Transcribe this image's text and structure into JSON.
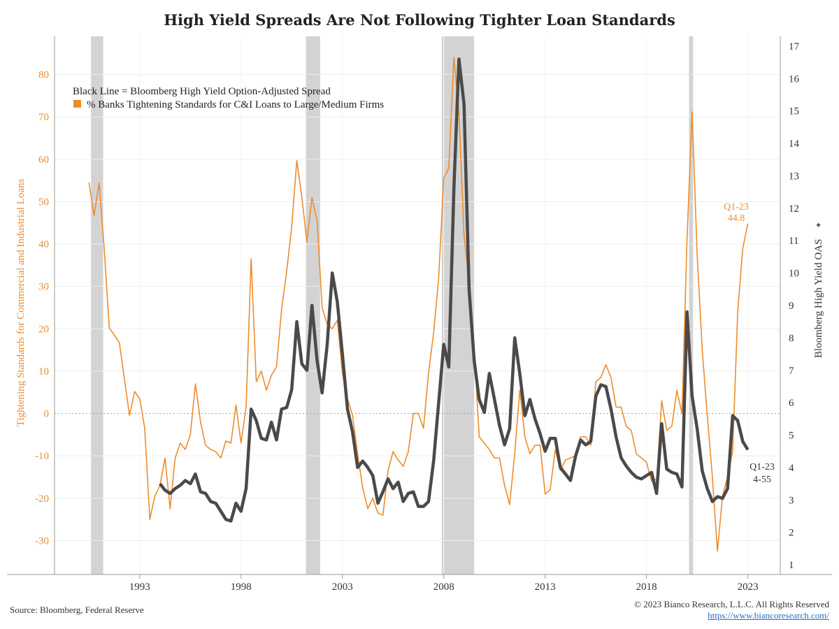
{
  "title": "High Yield Spreads Are Not Following Tighter Loan Standards",
  "source": "Source: Bloomberg, Federal Reserve",
  "copyright": "© 2023 Bianco Research, L.L.C. All Rights Reserved",
  "website": "https://www.biancoresearch.com/",
  "colors": {
    "orange": "#ee8c2c",
    "black_line": "#4a4a4a",
    "recession": "#d3d3d3",
    "axis": "#666666",
    "grid": "#eeeeee"
  },
  "chart_data": {
    "type": "line",
    "title": "High Yield Spreads Are Not Following Tighter Loan Standards",
    "legend": {
      "line1": "Black Line = Bloomberg High Yield Option-Adjusted Spread",
      "line2": "% Banks Tightening Standards for C&I Loans to Large/Medium Firms",
      "placement": "top-left"
    },
    "left_axis": {
      "label": "Tightening Standards for Commercial and Industrial Loans",
      "range": [
        -38,
        89
      ],
      "ticks": [
        -30,
        -20,
        -10,
        0,
        10,
        20,
        30,
        40,
        50,
        60,
        70,
        80
      ]
    },
    "right_axis": {
      "label": "Bloomberg High Yield OAS",
      "range": [
        0.7,
        17.3
      ],
      "ticks": [
        1,
        2,
        3,
        4,
        5,
        6,
        7,
        8,
        9,
        10,
        11,
        12,
        13,
        14,
        15,
        16,
        17
      ]
    },
    "x_axis": {
      "range": [
        1988.8,
        2024.6
      ],
      "ticks": [
        1993,
        1998,
        2003,
        2008,
        2013,
        2018,
        2023
      ]
    },
    "zero_line": true,
    "recessions": [
      [
        1990.6,
        1991.2
      ],
      [
        2001.2,
        2001.9
      ],
      [
        2007.9,
        2009.5
      ],
      [
        2020.1,
        2020.3
      ]
    ],
    "annotations": [
      {
        "line1": "Q1-23",
        "line2": "44.8",
        "series": "orange"
      },
      {
        "line1": "Q1-23",
        "line2": "4-55",
        "series": "black"
      }
    ],
    "series": [
      {
        "name": "% Banks Tightening Standards for C&I Loans to Large/Medium Firms",
        "axis": "left",
        "x": [
          1990.5,
          1990.75,
          1991.0,
          1991.25,
          1991.5,
          1991.75,
          1992.0,
          1992.25,
          1992.5,
          1992.75,
          1993.0,
          1993.25,
          1993.5,
          1993.75,
          1994.0,
          1994.25,
          1994.5,
          1994.75,
          1995.0,
          1995.25,
          1995.5,
          1995.75,
          1996.0,
          1996.25,
          1996.5,
          1996.75,
          1997.0,
          1997.25,
          1997.5,
          1997.75,
          1998.0,
          1998.25,
          1998.5,
          1998.75,
          1999.0,
          1999.25,
          1999.5,
          1999.75,
          2000.0,
          2000.25,
          2000.5,
          2000.75,
          2001.0,
          2001.25,
          2001.5,
          2001.75,
          2002.0,
          2002.25,
          2002.5,
          2002.75,
          2003.0,
          2003.25,
          2003.5,
          2003.75,
          2004.0,
          2004.25,
          2004.5,
          2004.75,
          2005.0,
          2005.25,
          2005.5,
          2005.75,
          2006.0,
          2006.25,
          2006.5,
          2006.75,
          2007.0,
          2007.25,
          2007.5,
          2007.75,
          2008.0,
          2008.25,
          2008.5,
          2008.75,
          2009.0,
          2009.25,
          2009.5,
          2009.75,
          2010.0,
          2010.25,
          2010.5,
          2010.75,
          2011.0,
          2011.25,
          2011.5,
          2011.75,
          2012.0,
          2012.25,
          2012.5,
          2012.75,
          2013.0,
          2013.25,
          2013.5,
          2013.75,
          2014.0,
          2014.25,
          2014.5,
          2014.75,
          2015.0,
          2015.25,
          2015.5,
          2015.75,
          2016.0,
          2016.25,
          2016.5,
          2016.75,
          2017.0,
          2017.25,
          2017.5,
          2017.75,
          2018.0,
          2018.25,
          2018.5,
          2018.75,
          2019.0,
          2019.25,
          2019.5,
          2019.75,
          2020.0,
          2020.25,
          2020.5,
          2020.75,
          2021.0,
          2021.25,
          2021.5,
          2021.75,
          2022.0,
          2022.25,
          2022.5,
          2022.75,
          2023.0
        ],
        "y": [
          54.5,
          46.7,
          54.4,
          39.0,
          20.2,
          18.5,
          16.7,
          8.0,
          -0.5,
          5.2,
          3.5,
          -3.5,
          -25.0,
          -19.5,
          -17.0,
          -10.5,
          -22.5,
          -10.5,
          -7.0,
          -8.5,
          -5.0,
          7.0,
          -2.0,
          -7.5,
          -8.5,
          -9.0,
          -10.5,
          -6.5,
          -7.0,
          2.0,
          -7.0,
          1.5,
          36.5,
          7.5,
          10.0,
          5.5,
          9.0,
          11.0,
          24.5,
          33.5,
          44.0,
          59.7,
          51.0,
          40.5,
          51.0,
          45.5,
          25.0,
          21.0,
          20.0,
          22.0,
          9.5,
          3.5,
          -0.5,
          -9.5,
          -17.5,
          -22.5,
          -20.0,
          -23.5,
          -24.0,
          -13.5,
          -9.0,
          -11.0,
          -12.5,
          -9.0,
          0.0,
          0.0,
          -3.5,
          9.5,
          19.0,
          32.0,
          55.5,
          58.0,
          84.0,
          71.0,
          42.0,
          31.0,
          15.0,
          -5.5,
          -7.0,
          -8.5,
          -10.5,
          -10.5,
          -17.0,
          -21.5,
          -9.5,
          5.5,
          -5.5,
          -9.5,
          -7.5,
          -7.5,
          -19.0,
          -18.0,
          -8.5,
          -13.5,
          -11.0,
          -10.5,
          -10.0,
          -5.5,
          -5.5,
          -7.5,
          7.5,
          8.5,
          11.5,
          8.5,
          1.5,
          1.5,
          -3.0,
          -4.0,
          -9.5,
          -10.5,
          -11.5,
          -16.0,
          -15.5,
          3.0,
          -4.0,
          -3.0,
          5.5,
          0.0,
          41.0,
          71.2,
          37.5,
          15.0,
          -0.5,
          -15.0,
          -32.5,
          -19.5,
          -15.0,
          -9.0,
          24.0,
          39.0,
          44.8
        ]
      },
      {
        "name": "Bloomberg High Yield Option-Adjusted Spread",
        "axis": "right",
        "x": [
          1994.0,
          1994.25,
          1994.5,
          1994.75,
          1995.0,
          1995.25,
          1995.5,
          1995.75,
          1996.0,
          1996.25,
          1996.5,
          1996.75,
          1997.0,
          1997.25,
          1997.5,
          1997.75,
          1998.0,
          1998.25,
          1998.5,
          1998.75,
          1999.0,
          1999.25,
          1999.5,
          1999.75,
          2000.0,
          2000.25,
          2000.5,
          2000.75,
          2001.0,
          2001.25,
          2001.5,
          2001.75,
          2002.0,
          2002.25,
          2002.5,
          2002.75,
          2003.0,
          2003.25,
          2003.5,
          2003.75,
          2004.0,
          2004.25,
          2004.5,
          2004.75,
          2005.0,
          2005.25,
          2005.5,
          2005.75,
          2006.0,
          2006.25,
          2006.5,
          2006.75,
          2007.0,
          2007.25,
          2007.5,
          2007.75,
          2008.0,
          2008.25,
          2008.5,
          2008.75,
          2009.0,
          2009.25,
          2009.5,
          2009.75,
          2010.0,
          2010.25,
          2010.5,
          2010.75,
          2011.0,
          2011.25,
          2011.5,
          2011.75,
          2012.0,
          2012.25,
          2012.5,
          2012.75,
          2013.0,
          2013.25,
          2013.5,
          2013.75,
          2014.0,
          2014.25,
          2014.5,
          2014.75,
          2015.0,
          2015.25,
          2015.5,
          2015.75,
          2016.0,
          2016.25,
          2016.5,
          2016.75,
          2017.0,
          2017.25,
          2017.5,
          2017.75,
          2018.0,
          2018.25,
          2018.5,
          2018.75,
          2019.0,
          2019.25,
          2019.5,
          2019.75,
          2020.0,
          2020.25,
          2020.5,
          2020.75,
          2021.0,
          2021.25,
          2021.5,
          2021.75,
          2022.0,
          2022.25,
          2022.5,
          2022.75,
          2023.0
        ],
        "y": [
          3.5,
          3.3,
          3.2,
          3.35,
          3.45,
          3.6,
          3.5,
          3.8,
          3.25,
          3.2,
          2.95,
          2.9,
          2.65,
          2.4,
          2.35,
          2.9,
          2.65,
          3.35,
          5.8,
          5.45,
          4.9,
          4.85,
          5.4,
          4.85,
          5.8,
          5.85,
          6.4,
          8.5,
          7.2,
          7.0,
          9.0,
          7.3,
          6.3,
          7.8,
          10.0,
          9.1,
          7.5,
          5.8,
          5.1,
          4.0,
          4.2,
          4.0,
          3.75,
          2.9,
          3.25,
          3.65,
          3.35,
          3.55,
          2.95,
          3.2,
          3.25,
          2.8,
          2.8,
          2.95,
          4.2,
          6.0,
          7.8,
          7.1,
          12.6,
          16.6,
          15.2,
          9.5,
          7.3,
          6.1,
          5.7,
          6.9,
          6.1,
          5.3,
          4.7,
          5.2,
          8.0,
          6.9,
          5.6,
          6.1,
          5.5,
          5.05,
          4.5,
          4.9,
          4.9,
          4.0,
          3.8,
          3.6,
          4.35,
          4.85,
          4.7,
          4.8,
          6.2,
          6.55,
          6.5,
          5.8,
          4.95,
          4.3,
          4.05,
          3.85,
          3.7,
          3.65,
          3.75,
          3.85,
          3.2,
          5.35,
          3.95,
          3.85,
          3.8,
          3.4,
          8.8,
          6.2,
          5.2,
          3.9,
          3.35,
          2.95,
          3.1,
          3.05,
          3.35,
          5.6,
          5.45,
          4.8,
          4.55
        ]
      }
    ]
  }
}
